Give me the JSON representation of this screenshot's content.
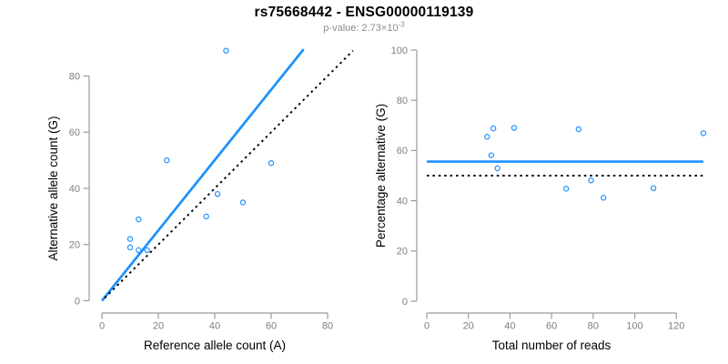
{
  "figure": {
    "title": "rs75668442 - ENSG00000119139",
    "subtitle": {
      "prefix": "p-value: 2.73×10",
      "exponent": "-3"
    }
  },
  "colors": {
    "accent_blue": "#1E90FF",
    "point_blue": "#1E90FF",
    "line_black": "#000000",
    "axis_gray": "#9b9b9b",
    "tick_label_gray": "#7f7f7f",
    "subtitle_gray": "#8c8c8c",
    "title_color": "#000000"
  },
  "chart_data": [
    {
      "type": "scatter",
      "id": "allele-counts",
      "xlabel": "Reference allele count (A)",
      "ylabel": "Alternative allele count (G)",
      "xticks": [
        0,
        20,
        40,
        60,
        80
      ],
      "yticks": [
        0,
        20,
        40,
        60,
        80
      ],
      "xlim": [
        0,
        90
      ],
      "ylim": [
        0,
        90
      ],
      "grid": false,
      "legend": false,
      "points": [
        [
          10,
          19
        ],
        [
          10,
          22
        ],
        [
          13,
          18
        ],
        [
          16,
          18
        ],
        [
          13,
          29
        ],
        [
          23,
          50
        ],
        [
          37,
          30
        ],
        [
          41,
          38
        ],
        [
          44,
          89
        ],
        [
          50,
          35
        ],
        [
          60,
          49
        ]
      ],
      "lines": [
        {
          "name": "fit-line",
          "style": "solid",
          "color_key": "accent_blue",
          "slope": 1.252,
          "intercept": 0,
          "x_range": [
            0,
            71.5
          ]
        },
        {
          "name": "identity-line",
          "style": "dotted",
          "color_key": "line_black",
          "slope": 1,
          "intercept": 0,
          "x_range": [
            1,
            89
          ]
        }
      ]
    },
    {
      "type": "scatter",
      "id": "percentage-vs-reads",
      "xlabel": "Total number of reads",
      "ylabel": "Percentage alternative (G)",
      "xticks": [
        0,
        20,
        40,
        60,
        80,
        100,
        120
      ],
      "yticks": [
        0,
        20,
        40,
        60,
        80,
        100
      ],
      "xlim": [
        0,
        133
      ],
      "ylim": [
        0,
        100
      ],
      "grid": false,
      "legend": false,
      "points": [
        [
          29,
          65.5
        ],
        [
          31,
          58.1
        ],
        [
          32,
          68.8
        ],
        [
          34,
          52.9
        ],
        [
          42,
          69
        ],
        [
          67,
          44.8
        ],
        [
          73,
          68.5
        ],
        [
          79,
          48.1
        ],
        [
          85,
          41.2
        ],
        [
          109,
          45
        ],
        [
          133,
          66.9
        ]
      ],
      "lines": [
        {
          "name": "mean-line",
          "style": "solid",
          "color_key": "accent_blue",
          "slope": 0,
          "intercept": 55.6,
          "x_range": [
            0,
            133
          ]
        },
        {
          "name": "reference-line",
          "style": "dotted",
          "color_key": "line_black",
          "slope": 0,
          "intercept": 50,
          "x_range": [
            0,
            133
          ]
        }
      ]
    }
  ]
}
